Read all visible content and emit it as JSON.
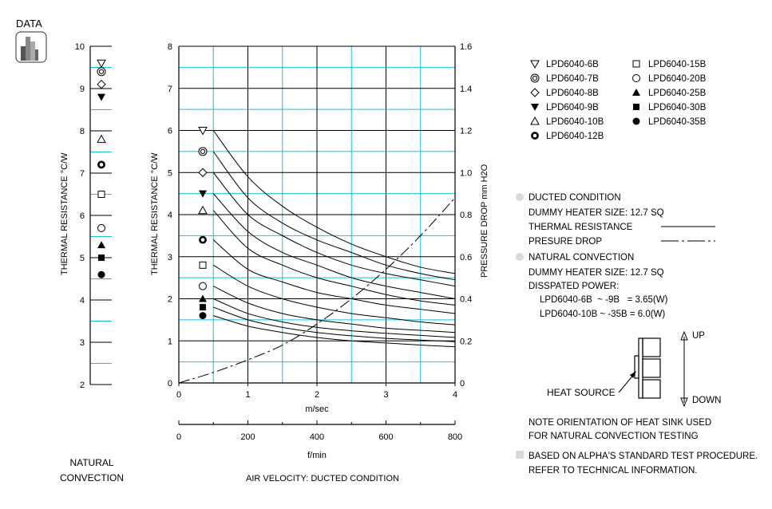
{
  "logo": {
    "label": "DATA",
    "icon": "data-bars-icon"
  },
  "natural_panel": {
    "ylabel": "THERMAL  RESISTANCE  °C/W",
    "yticks": [
      2,
      3,
      4,
      5,
      6,
      7,
      8,
      9,
      10
    ],
    "caption_line1": "NATURAL",
    "caption_line2": "CONVECTION"
  },
  "chart_data": {
    "type": "line",
    "xlabel": "m/sec",
    "x2label": "f/min",
    "ylabel": "THERMAL  RESISTANCE  °C/W",
    "y2label": "PRESSURE  DROP   mm H2O",
    "caption": "AIR VELOCITY:  DUCTED CONDITION",
    "xlim": [
      0,
      4
    ],
    "ylim": [
      0,
      8
    ],
    "y2lim": [
      0,
      1.6
    ],
    "x2lim": [
      0,
      800
    ],
    "xticks": [
      0,
      1,
      2,
      3,
      4
    ],
    "yticks": [
      0,
      1,
      2,
      3,
      4,
      5,
      6,
      7,
      8
    ],
    "y2ticks": [
      "0",
      "0.2",
      "0.4",
      "0.6",
      "0.8",
      "1.0",
      "1.2",
      "1.4",
      "1.6"
    ],
    "x2ticks": [
      0,
      200,
      400,
      600,
      800
    ],
    "grid": true,
    "curve_x": [
      0.5,
      1.0,
      1.5,
      2.0,
      2.5,
      3.0,
      3.5,
      4.0
    ],
    "series": [
      {
        "name": "LPD6040-6B",
        "marker": "triangle-down-open",
        "ducted": [
          6.0,
          4.9,
          4.2,
          3.7,
          3.3,
          3.0,
          2.75,
          2.6
        ],
        "natural": 9.6
      },
      {
        "name": "LPD6040-7B",
        "marker": "double-circle",
        "ducted": [
          5.5,
          4.4,
          3.8,
          3.4,
          3.1,
          2.8,
          2.6,
          2.45
        ],
        "natural": 9.4
      },
      {
        "name": "LPD6040-8B",
        "marker": "diamond-open",
        "ducted": [
          5.0,
          4.0,
          3.5,
          3.1,
          2.8,
          2.6,
          2.45,
          2.3
        ],
        "natural": 9.1
      },
      {
        "name": "LPD6040-9B",
        "marker": "triangle-down-filled",
        "ducted": [
          4.5,
          3.6,
          3.1,
          2.8,
          2.5,
          2.3,
          2.15,
          2.0
        ],
        "natural": 8.8
      },
      {
        "name": "LPD6040-10B",
        "marker": "triangle-up-open",
        "ducted": [
          4.1,
          3.2,
          2.8,
          2.5,
          2.3,
          2.1,
          1.95,
          1.85
        ],
        "natural": 7.8
      },
      {
        "name": "LPD6040-12B",
        "marker": "thick-circle",
        "ducted": [
          3.4,
          2.7,
          2.4,
          2.15,
          2.0,
          1.85,
          1.75,
          1.65
        ],
        "natural": 7.2
      },
      {
        "name": "LPD6040-15B",
        "marker": "square-open",
        "ducted": [
          2.8,
          2.3,
          2.0,
          1.8,
          1.65,
          1.55,
          1.45,
          1.38
        ],
        "natural": 6.5
      },
      {
        "name": "LPD6040-20B",
        "marker": "circle-open",
        "ducted": [
          2.3,
          1.9,
          1.65,
          1.5,
          1.4,
          1.3,
          1.25,
          1.2
        ],
        "natural": 5.7
      },
      {
        "name": "LPD6040-25B",
        "marker": "triangle-up-filled",
        "ducted": [
          2.0,
          1.65,
          1.45,
          1.32,
          1.24,
          1.18,
          1.13,
          1.08
        ],
        "natural": 5.3
      },
      {
        "name": "LPD6040-30B",
        "marker": "square-filled",
        "ducted": [
          1.8,
          1.5,
          1.32,
          1.2,
          1.12,
          1.06,
          1.02,
          0.98
        ],
        "natural": 5.0
      },
      {
        "name": "LPD6040-35B",
        "marker": "circle-filled",
        "ducted": [
          1.6,
          1.35,
          1.2,
          1.08,
          1.0,
          0.95,
          0.9,
          0.86
        ],
        "natural": 4.6
      }
    ],
    "pressure_drop": {
      "x": [
        0,
        0.5,
        1.0,
        1.5,
        2.0,
        2.5,
        3.0,
        3.5,
        4.0
      ],
      "y": [
        0,
        0.05,
        0.11,
        0.18,
        0.28,
        0.4,
        0.54,
        0.7,
        0.88
      ]
    }
  },
  "notes": {
    "ducted_title": "DUCTED CONDITION",
    "heater_size": "DUMMY HEATER SIZE: 12.7 SQ",
    "thermal_resistance": "THERMAL RESISTANCE",
    "pressure_drop": "PRESURE DROP",
    "natural_title": "NATURAL CONVECTION",
    "heater_size2": "DUMMY HEATER SIZE: 12.7 SQ",
    "dissipated": "DISSPATED POWER:",
    "power1": "LPD6040-6B  ~ -9B   = 3.65(W)",
    "power2": "LPD6040-10B ~ -35B = 6.0(W)"
  },
  "diagram": {
    "up": "UP",
    "down": "DOWN",
    "heat_source": "HEAT SOURCE",
    "orientation_line1": "NOTE ORIENTATION OF HEAT SINK USED",
    "orientation_line2": "FOR NATURAL CONVECTION TESTING"
  },
  "footer": {
    "line1": "BASED ON ALPHA'S STANDARD TEST PROCEDURE.",
    "line2": "REFER TO TECHNICAL INFORMATION."
  },
  "colors": {
    "grid_cyan": "#19c3d6",
    "grid_black": "#000000",
    "bullet_gray": "#d9d9d9"
  }
}
